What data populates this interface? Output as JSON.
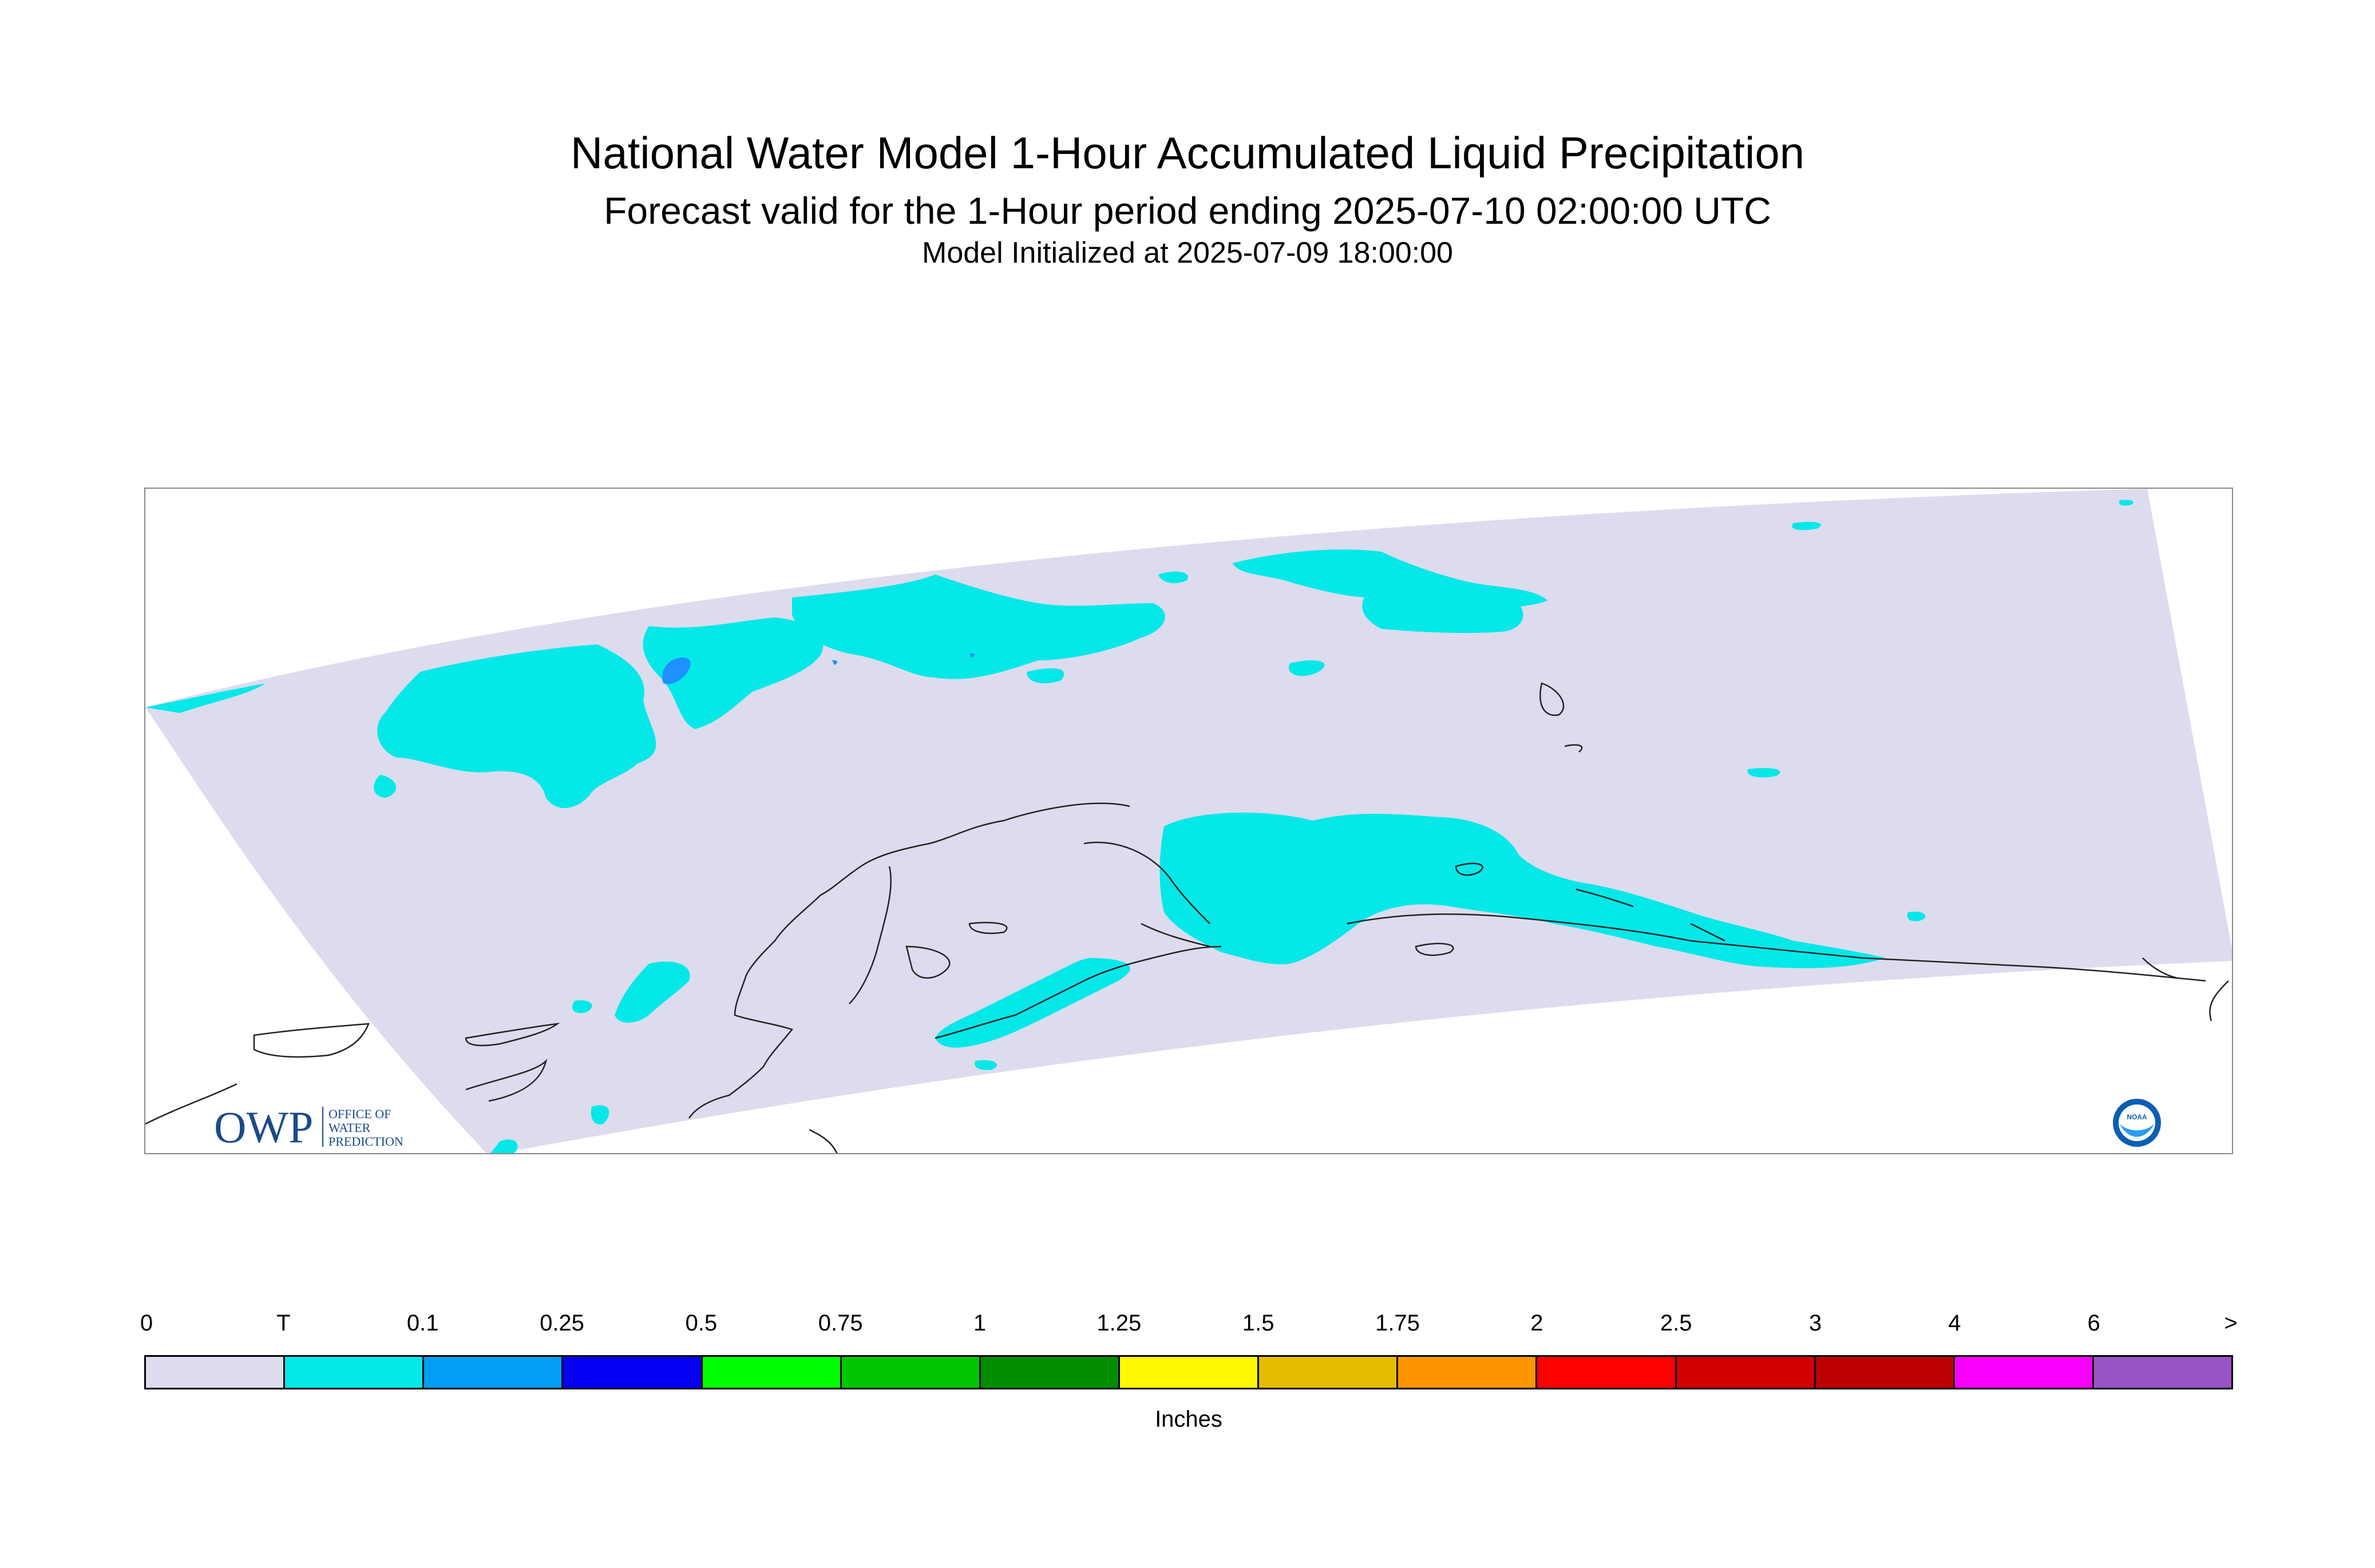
{
  "header": {
    "title": "National Water Model 1-Hour Accumulated Liquid Precipitation",
    "subtitle": "Forecast valid for the 1-Hour period ending 2025-07-10 02:00:00 UTC",
    "init": "Model Initialized at 2025-07-09 18:00:00"
  },
  "map": {
    "domain_fill": "#dcdcee",
    "precip_fill_trace": "#04e8e8",
    "precip_fill_light": "#1e90ff",
    "coastline_color": "#222222",
    "logos": {
      "owp_text": "OWP",
      "owp_tagline": [
        "OFFICE OF",
        "WATER",
        "PREDICTION"
      ],
      "noaa_text": "NOAA"
    }
  },
  "legend": {
    "units": "Inches",
    "ticks": [
      "0",
      "T",
      "0.1",
      "0.25",
      "0.5",
      "0.75",
      "1",
      "1.25",
      "1.5",
      "1.75",
      "2",
      "2.5",
      "3",
      "4",
      "6",
      ">"
    ],
    "colors": [
      "#dcdcee",
      "#04e8e8",
      "#019ff4",
      "#0300f4",
      "#02fd02",
      "#01c501",
      "#008e00",
      "#fdf802",
      "#e5bc00",
      "#fd9500",
      "#fd0000",
      "#d40000",
      "#bc0000",
      "#f800fd",
      "#9854c6"
    ]
  }
}
